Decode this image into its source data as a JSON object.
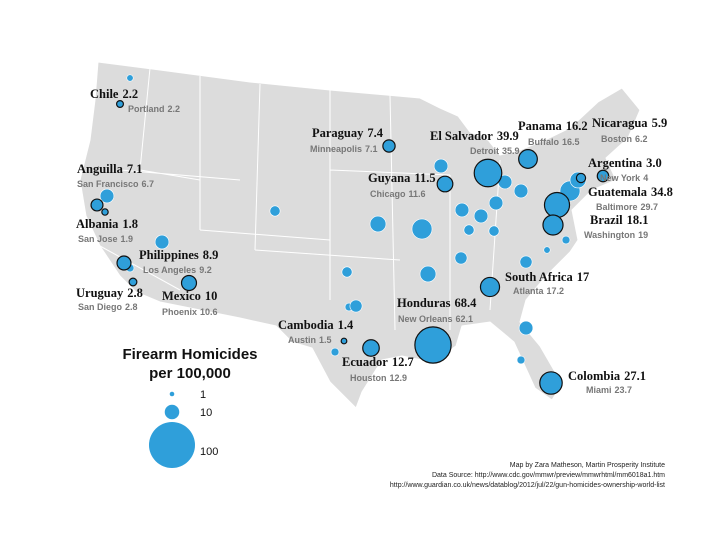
{
  "legend": {
    "title": [
      "Firearm Homicides",
      "per 100,000"
    ],
    "sizes": [
      1,
      10,
      100
    ]
  },
  "points": [
    {
      "country": "Chile",
      "country_rate": 2.2,
      "city": "Portland",
      "city_rate": 2.2
    },
    {
      "country": "Paraguay",
      "country_rate": 7.4,
      "city": "Minneapolis",
      "city_rate": 7.1
    },
    {
      "country": "El Salvador",
      "country_rate": 39.9,
      "city": "Detroit",
      "city_rate": 35.9
    },
    {
      "country": "Panama",
      "country_rate": 16.2,
      "city": "Buffalo",
      "city_rate": 16.5
    },
    {
      "country": "Nicaragua",
      "country_rate": 5.9,
      "city": "Boston",
      "city_rate": 6.2
    },
    {
      "country": "Argentina",
      "country_rate": 3,
      "country_rate_label": "3.0",
      "city": "New York",
      "city_rate": 4
    },
    {
      "country": "Anguilla",
      "country_rate": 7.1,
      "city": "San Francisco",
      "city_rate": 6.7
    },
    {
      "country": "Guyana",
      "country_rate": 11.5,
      "city": "Chicago",
      "city_rate": 11.6
    },
    {
      "country": "Guatemala",
      "country_rate": 34.8,
      "city": "Baltimore",
      "city_rate": 29.7
    },
    {
      "country": "Albania",
      "country_rate": 1.8,
      "city": "San Jose",
      "city_rate": 1.9
    },
    {
      "country": "Brazil",
      "country_rate": 18.1,
      "city": "Washington",
      "city_rate": 19
    },
    {
      "country": "Philippines",
      "country_rate": 8.9,
      "city": "Los Angeles",
      "city_rate": 9.2
    },
    {
      "country": "South Africa",
      "country_rate": 17,
      "city": "Atlanta",
      "city_rate": 17.2
    },
    {
      "country": "Uruguay",
      "country_rate": 2.8,
      "city": "San Diego",
      "city_rate": 2.8
    },
    {
      "country": "Mexico",
      "country_rate": 10,
      "city": "Phoenix",
      "city_rate": 10.6
    },
    {
      "country": "Honduras",
      "country_rate": 68.4,
      "city": "New Orleans",
      "city_rate": 62.1
    },
    {
      "country": "Cambodia",
      "country_rate": 1.4,
      "city": "Austin",
      "city_rate": 1.5
    },
    {
      "country": "Ecuador",
      "country_rate": 12.7,
      "city": "Houston",
      "city_rate": 12.9
    },
    {
      "country": "Colombia",
      "country_rate": 27.1,
      "city": "Miami",
      "city_rate": 23.7
    }
  ],
  "other_cities": [
    2,
    9,
    5,
    9,
    12,
    19,
    9,
    9,
    9,
    9,
    9,
    9,
    5,
    5,
    7,
    12,
    5,
    3,
    7,
    3,
    7,
    2,
    9,
    3,
    19,
    12,
    3,
    3
  ],
  "credits": [
    "Map by Zara Matheson, Martin Prosperity Institute",
    "Data Source: http://www.cdc.gov/mmwr/preview/mmwrhtml/mm6018a1.htm",
    "http://www.guardian.co.uk/news/datablog/2012/jul/22/gun-homicides-ownership-world-list"
  ]
}
